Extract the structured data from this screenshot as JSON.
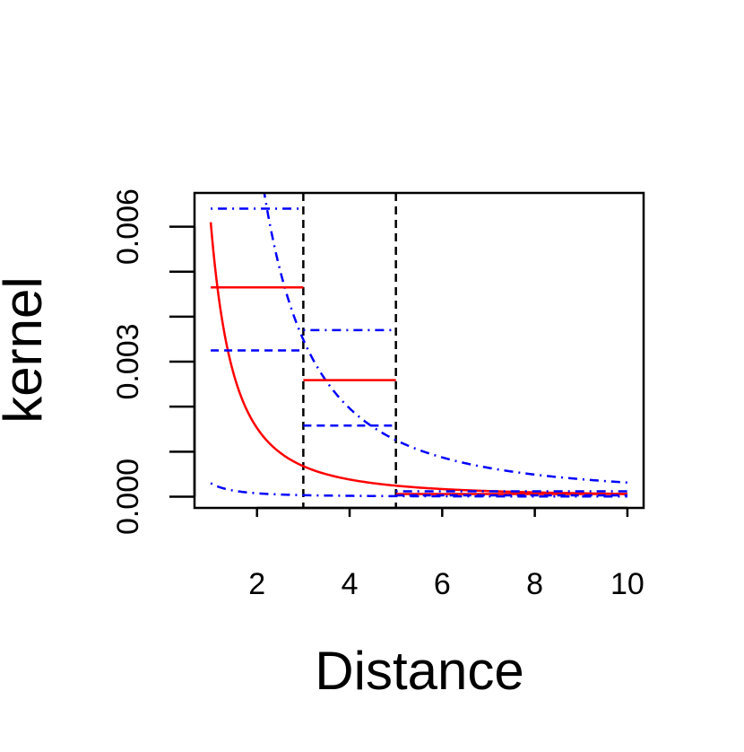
{
  "chart_data": {
    "type": "line",
    "title": "",
    "xlabel": "Distance",
    "ylabel": "kernel",
    "xlim": [
      0.65,
      10.35
    ],
    "ylim": [
      -0.00025,
      0.00675
    ],
    "x_ticks": [
      2,
      4,
      6,
      8,
      10
    ],
    "x_tick_labels": [
      "2",
      "4",
      "6",
      "8",
      "10"
    ],
    "y_ticks": [
      0,
      0.001,
      0.002,
      0.003,
      0.004,
      0.005,
      0.006
    ],
    "y_tick_labels": [
      "0.000",
      "",
      "",
      "0.003",
      "",
      "",
      "0.006"
    ],
    "grid": false,
    "legend": "none",
    "colors": {
      "red": "#ff0000",
      "blue": "#0000ff",
      "black": "#000000"
    },
    "vertical_lines": [
      {
        "x": 3,
        "style": "dashed",
        "color": "#000000"
      },
      {
        "x": 5,
        "style": "dashed",
        "color": "#000000"
      }
    ],
    "curves": [
      {
        "id": "estimate",
        "color": "#ff0000",
        "style": "solid",
        "form": "a/x^2",
        "a": 0.0061,
        "x_range": [
          1,
          10
        ]
      },
      {
        "id": "lower",
        "color": "#0000ff",
        "style": "dotdash",
        "form": "a/x^2",
        "a": 0.0003,
        "x_range": [
          1,
          10
        ]
      },
      {
        "id": "upper",
        "color": "#0000ff",
        "style": "dotdash",
        "form": "a/x^2",
        "a": 0.0314,
        "x_range": [
          2.05,
          10
        ]
      }
    ],
    "steps": [
      {
        "id": "estimate-step",
        "color": "#ff0000",
        "style": "solid",
        "segments": [
          {
            "x": [
              1,
              3
            ],
            "y": 0.00465
          },
          {
            "x": [
              3,
              5
            ],
            "y": 0.00259
          },
          {
            "x": [
              5,
              10
            ],
            "y": 6e-05
          }
        ]
      },
      {
        "id": "upper-step",
        "color": "#0000ff",
        "style": "dotdash",
        "segments": [
          {
            "x": [
              1,
              3
            ],
            "y": 0.0064
          },
          {
            "x": [
              3,
              5
            ],
            "y": 0.0037
          },
          {
            "x": [
              5,
              10
            ],
            "y": 0.00012
          }
        ]
      },
      {
        "id": "lower-step",
        "color": "#0000ff",
        "style": "dashed",
        "segments": [
          {
            "x": [
              1,
              3
            ],
            "y": 0.00325
          },
          {
            "x": [
              3,
              5
            ],
            "y": 0.00158
          },
          {
            "x": [
              5,
              10
            ],
            "y": 3e-05
          }
        ]
      }
    ]
  }
}
